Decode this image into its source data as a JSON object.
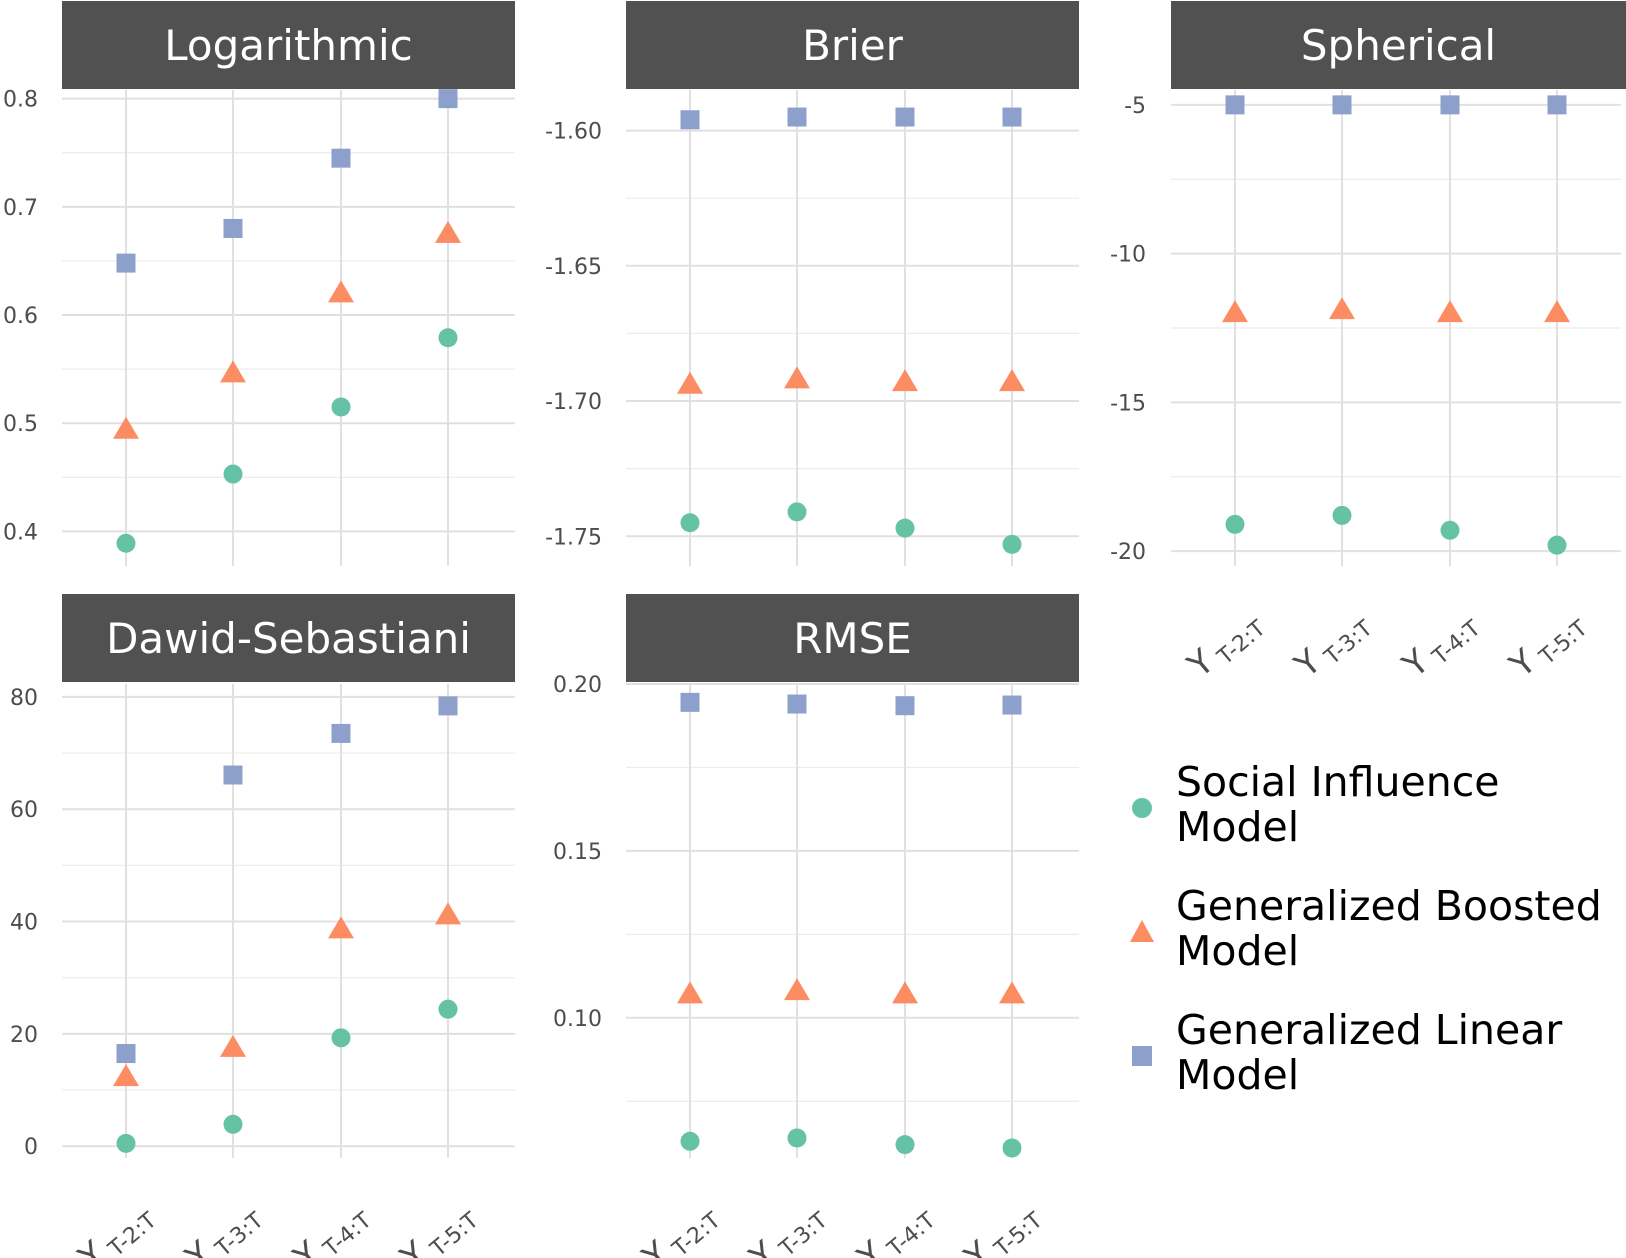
{
  "colors": {
    "social": "#66c2a5",
    "boosted": "#fc8d62",
    "linear": "#8da0cb",
    "strip": "#515151",
    "grid": "#e0e0e0"
  },
  "legend": [
    {
      "key": "social",
      "label": "Social Influence Model",
      "shape": "circle"
    },
    {
      "key": "boosted",
      "label": "Generalized Boosted Model",
      "shape": "triangle"
    },
    {
      "key": "linear",
      "label": "Generalized Linear Model",
      "shape": "square"
    }
  ],
  "chart_data": [
    {
      "type": "scatter",
      "title": "Logarithmic",
      "categories": [
        "Y T-2:T",
        "Y T-3:T",
        "Y T-4:T",
        "Y T-5:T"
      ],
      "ylim": [
        0.368,
        0.808
      ],
      "yticks": [
        0.4,
        0.5,
        0.6,
        0.7,
        0.8
      ],
      "ytick_labels": [
        "0.4",
        "0.5",
        "0.6",
        "0.7",
        "0.8"
      ],
      "series": [
        {
          "name": "Social Influence Model",
          "values": [
            0.389,
            0.453,
            0.515,
            0.579
          ]
        },
        {
          "name": "Generalized Boosted Model",
          "values": [
            0.494,
            0.546,
            0.62,
            0.675
          ]
        },
        {
          "name": "Generalized Linear Model",
          "values": [
            0.648,
            0.68,
            0.745,
            0.8
          ]
        }
      ]
    },
    {
      "type": "scatter",
      "title": "Brier",
      "categories": [
        "Y T-2:T",
        "Y T-3:T",
        "Y T-4:T",
        "Y T-5:T"
      ],
      "ylim": [
        -1.761,
        -1.585
      ],
      "yticks": [
        -1.75,
        -1.7,
        -1.65,
        -1.6
      ],
      "ytick_labels": [
        "-1.75",
        "-1.70",
        "-1.65",
        "-1.60"
      ],
      "series": [
        {
          "name": "Social Influence Model",
          "values": [
            -1.745,
            -1.741,
            -1.747,
            -1.753
          ]
        },
        {
          "name": "Generalized Boosted Model",
          "values": [
            -1.694,
            -1.692,
            -1.693,
            -1.693
          ]
        },
        {
          "name": "Generalized Linear Model",
          "values": [
            -1.596,
            -1.595,
            -1.595,
            -1.595
          ]
        }
      ]
    },
    {
      "type": "scatter",
      "title": "Spherical",
      "categories": [
        "Y T-2:T",
        "Y T-3:T",
        "Y T-4:T",
        "Y T-5:T"
      ],
      "ylim": [
        -20.5,
        -4.5
      ],
      "yticks": [
        -20,
        -15,
        -10,
        -5
      ],
      "ytick_labels": [
        "-20",
        "-15",
        "-10",
        "-5"
      ],
      "series": [
        {
          "name": "Social Influence Model",
          "values": [
            -19.1,
            -18.8,
            -19.3,
            -19.8
          ]
        },
        {
          "name": "Generalized Boosted Model",
          "values": [
            -12.0,
            -11.9,
            -12.0,
            -12.0
          ]
        },
        {
          "name": "Generalized Linear Model",
          "values": [
            -5.0,
            -5.0,
            -5.0,
            -5.0
          ]
        }
      ]
    },
    {
      "type": "scatter",
      "title": "Dawid-Sebastiani",
      "categories": [
        "Y T-2:T",
        "Y T-3:T",
        "Y T-4:T",
        "Y T-5:T"
      ],
      "ylim": [
        -2.1,
        82.3
      ],
      "yticks": [
        0,
        20,
        40,
        60,
        80
      ],
      "ytick_labels": [
        "0",
        "20",
        "40",
        "60",
        "80"
      ],
      "series": [
        {
          "name": "Social Influence Model",
          "values": [
            0.5,
            3.9,
            19.3,
            24.4
          ]
        },
        {
          "name": "Generalized Boosted Model",
          "values": [
            12.3,
            17.5,
            38.6,
            41.1
          ]
        },
        {
          "name": "Generalized Linear Model",
          "values": [
            16.5,
            66.1,
            73.5,
            78.4
          ]
        }
      ]
    },
    {
      "type": "scatter",
      "title": "RMSE",
      "categories": [
        "Y T-2:T",
        "Y T-3:T",
        "Y T-4:T",
        "Y T-5:T"
      ],
      "ylim": [
        0.058,
        0.2
      ],
      "yticks": [
        0.1,
        0.15,
        0.2
      ],
      "ytick_labels": [
        "0.10",
        "0.15",
        "0.20"
      ],
      "series": [
        {
          "name": "Social Influence Model",
          "values": [
            0.063,
            0.064,
            0.062,
            0.061
          ]
        },
        {
          "name": "Generalized Boosted Model",
          "values": [
            0.107,
            0.108,
            0.107,
            0.107
          ]
        },
        {
          "name": "Generalized Linear Model",
          "values": [
            0.1945,
            0.194,
            0.1935,
            0.1937
          ]
        }
      ]
    }
  ]
}
